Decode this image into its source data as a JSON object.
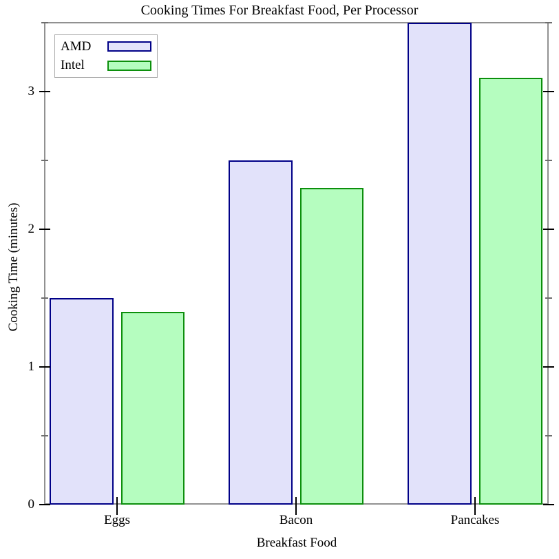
{
  "colors": {
    "background": "#FFFFFF",
    "text": "#000000",
    "spine": "#919191",
    "tick_major": "#000000",
    "tick_minor": "#6E6E6E",
    "legend_border": "#ABABAB",
    "amd_fill": "#E2E2FA",
    "amd_stroke": "#000087",
    "intel_fill": "#B5FDBF",
    "intel_stroke": "#0C8F0C"
  },
  "chart_data": {
    "type": "bar",
    "title": "Cooking Times For Breakfast Food, Per Processor",
    "xlabel": "Breakfast Food",
    "ylabel": "Cooking Time (minutes)",
    "categories": [
      "Eggs",
      "Bacon",
      "Pancakes"
    ],
    "series": [
      {
        "name": "AMD",
        "values": [
          1.5,
          2.5,
          3.5
        ],
        "fill": "#E2E2FA",
        "stroke": "#000087"
      },
      {
        "name": "Intel",
        "values": [
          1.4,
          2.3,
          3.1
        ],
        "fill": "#B5FDBF",
        "stroke": "#0C8F0C"
      }
    ],
    "ylim": [
      0,
      3.5
    ],
    "yticks_major": [
      0,
      1,
      2,
      3
    ],
    "ytick_labels": [
      "0",
      "1",
      "2",
      "3"
    ],
    "yticks_minor": [
      0.5,
      1.5,
      2.5,
      3.5
    ],
    "legend_position": "top-left",
    "grid": false
  }
}
